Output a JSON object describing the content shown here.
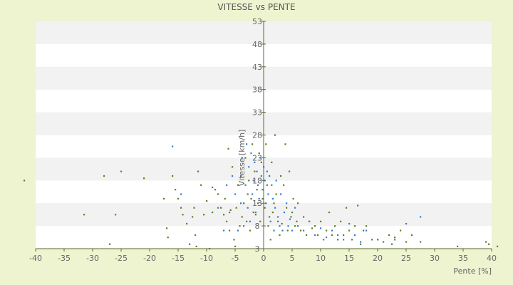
{
  "chart_data": {
    "type": "scatter",
    "title": "VITESSE vs PENTE",
    "xlabel": "Pente [%]",
    "ylabel": "Vitesse [km/h]",
    "xlim": [
      -40,
      40
    ],
    "ylim": [
      3,
      53
    ],
    "x_ticks": [
      "-40",
      "-35",
      "-30",
      "-25",
      "-20",
      "-15",
      "-10",
      "-5",
      "0",
      "5",
      "10",
      "15",
      "20",
      "25",
      "30",
      "35",
      "40"
    ],
    "y_ticks": [
      "3",
      "8",
      "13",
      "18",
      "23",
      "28",
      "33",
      "38",
      "43",
      "48",
      "53"
    ],
    "grid": "horizontal bands",
    "colors": {
      "background": "#eef3d0",
      "band_light": "#ffffff",
      "band_dark": "#f2f2f2",
      "axis": "#556b2f",
      "series_olive": "#6b7a1e",
      "series_blue": "#2f7fd6"
    },
    "series": [
      {
        "color_key": "series_olive",
        "points": [
          [
            -42,
            18
          ],
          [
            -31.5,
            10.5
          ],
          [
            -28,
            19
          ],
          [
            -27,
            4
          ],
          [
            -26,
            10.5
          ],
          [
            -21,
            18.5
          ],
          [
            -17.5,
            14
          ],
          [
            -17,
            7.5
          ],
          [
            -16.8,
            5.5
          ],
          [
            -16,
            19
          ],
          [
            -15.5,
            16
          ],
          [
            -15,
            14
          ],
          [
            -14.5,
            12
          ],
          [
            -14.2,
            10.5
          ],
          [
            -13.5,
            8.5
          ],
          [
            -13,
            4
          ],
          [
            -12.5,
            10
          ],
          [
            -12.2,
            12
          ],
          [
            -12,
            6
          ],
          [
            -11.8,
            3.5
          ],
          [
            -11.5,
            20
          ],
          [
            -11,
            17
          ],
          [
            -10.5,
            10.5
          ],
          [
            -10,
            13.5
          ],
          [
            -9.5,
            3
          ],
          [
            -9,
            11
          ],
          [
            -8.5,
            16
          ],
          [
            -8,
            15
          ],
          [
            -7.5,
            12
          ],
          [
            -7,
            10.5
          ],
          [
            -6.8,
            14
          ],
          [
            -6.5,
            9
          ],
          [
            -6.2,
            25
          ],
          [
            -6,
            7
          ],
          [
            -5.8,
            11.5
          ],
          [
            -5.5,
            21
          ],
          [
            -5.2,
            5
          ],
          [
            -5,
            3.5
          ],
          [
            -4.8,
            12
          ],
          [
            -4.5,
            17
          ],
          [
            -4.2,
            8
          ],
          [
            -4,
            19
          ],
          [
            -3.8,
            10
          ],
          [
            -3.5,
            13
          ],
          [
            -3.2,
            23
          ],
          [
            -3,
            9
          ],
          [
            -2.8,
            15
          ],
          [
            -2.6,
            18
          ],
          [
            -2.4,
            7
          ],
          [
            -2.2,
            14
          ],
          [
            -2,
            26
          ],
          [
            -1.8,
            11
          ],
          [
            -1.6,
            20
          ],
          [
            -1.4,
            10.5
          ],
          [
            -1.2,
            16
          ],
          [
            -1,
            13
          ],
          [
            -0.8,
            24
          ],
          [
            -0.6,
            9
          ],
          [
            -0.4,
            22
          ],
          [
            -0.2,
            14
          ],
          [
            0.2,
            12
          ],
          [
            0.4,
            26
          ],
          [
            0.6,
            17
          ],
          [
            0.8,
            8
          ],
          [
            1,
            10
          ],
          [
            1.2,
            5
          ],
          [
            1.4,
            22
          ],
          [
            1.6,
            11
          ],
          [
            1.8,
            13
          ],
          [
            2,
            28
          ],
          [
            2.2,
            15
          ],
          [
            2.5,
            9
          ],
          [
            2.8,
            6
          ],
          [
            3,
            19
          ],
          [
            3.2,
            8.5
          ],
          [
            3.5,
            17
          ],
          [
            3.8,
            26
          ],
          [
            4,
            12
          ],
          [
            4.2,
            7
          ],
          [
            4.5,
            20
          ],
          [
            4.8,
            10
          ],
          [
            5,
            11
          ],
          [
            5.2,
            14
          ],
          [
            5.5,
            8
          ],
          [
            5.8,
            9
          ],
          [
            6,
            13
          ],
          [
            6.5,
            7
          ],
          [
            7,
            10
          ],
          [
            7.5,
            6
          ],
          [
            8,
            9
          ],
          [
            8.5,
            7.5
          ],
          [
            9,
            8
          ],
          [
            9.5,
            6
          ],
          [
            10,
            9
          ],
          [
            10.5,
            5
          ],
          [
            11,
            7
          ],
          [
            11.5,
            11
          ],
          [
            12,
            6
          ],
          [
            12.5,
            8
          ],
          [
            13,
            5
          ],
          [
            13.5,
            9
          ],
          [
            14,
            6
          ],
          [
            14.5,
            12
          ],
          [
            15,
            7
          ],
          [
            15.5,
            5
          ],
          [
            16,
            8
          ],
          [
            16.5,
            12.5
          ],
          [
            17,
            4
          ],
          [
            17.5,
            7
          ],
          [
            18,
            8
          ],
          [
            19,
            5
          ],
          [
            20,
            5
          ],
          [
            21,
            4.5
          ],
          [
            22,
            6
          ],
          [
            22.5,
            4
          ],
          [
            23,
            5.5
          ],
          [
            24,
            7
          ],
          [
            25,
            4.5
          ],
          [
            26,
            6
          ],
          [
            27.5,
            4.5
          ],
          [
            34,
            3.5
          ],
          [
            39,
            4.5
          ],
          [
            39.5,
            4
          ],
          [
            41,
            3.5
          ]
        ]
      },
      {
        "color_key": "series_blue",
        "points": [
          [
            -25,
            20
          ],
          [
            -16,
            25.5
          ],
          [
            -14.5,
            15
          ],
          [
            -9,
            16.5
          ],
          [
            -8,
            12
          ],
          [
            -7,
            7
          ],
          [
            -6.5,
            17
          ],
          [
            -6,
            11
          ],
          [
            -5.5,
            19
          ],
          [
            -5,
            15
          ],
          [
            -4.5,
            7
          ],
          [
            -4,
            13
          ],
          [
            -3.8,
            23
          ],
          [
            -3.5,
            8
          ],
          [
            -3.2,
            17
          ],
          [
            -3,
            26
          ],
          [
            -2.8,
            12
          ],
          [
            -2.6,
            21
          ],
          [
            -2.4,
            9
          ],
          [
            -2.2,
            24
          ],
          [
            -2,
            15
          ],
          [
            -1.8,
            18
          ],
          [
            -1.6,
            22
          ],
          [
            -1.4,
            11
          ],
          [
            -1.2,
            20
          ],
          [
            -1,
            17
          ],
          [
            -0.8,
            14
          ],
          [
            -0.6,
            23
          ],
          [
            -0.4,
            19
          ],
          [
            -0.2,
            16
          ],
          [
            0,
            21
          ],
          [
            0.2,
            18
          ],
          [
            0.4,
            13
          ],
          [
            0.6,
            20
          ],
          [
            0.8,
            15
          ],
          [
            1,
            19
          ],
          [
            1.2,
            9
          ],
          [
            1.4,
            17
          ],
          [
            1.6,
            14
          ],
          [
            1.8,
            7
          ],
          [
            2,
            12
          ],
          [
            2.2,
            18
          ],
          [
            2.5,
            10
          ],
          [
            2.8,
            8
          ],
          [
            3,
            15
          ],
          [
            3.3,
            7
          ],
          [
            3.6,
            11
          ],
          [
            4,
            13
          ],
          [
            4.3,
            8
          ],
          [
            4.6,
            9.5
          ],
          [
            5,
            7
          ],
          [
            5.5,
            12
          ],
          [
            6,
            8
          ],
          [
            7,
            7
          ],
          [
            8,
            9
          ],
          [
            9,
            6
          ],
          [
            10,
            7.5
          ],
          [
            11,
            5.5
          ],
          [
            12,
            7
          ],
          [
            13,
            6
          ],
          [
            14,
            5
          ],
          [
            15,
            8.5
          ],
          [
            16,
            6
          ],
          [
            17,
            4.5
          ],
          [
            18,
            7
          ],
          [
            20,
            5
          ],
          [
            23,
            5
          ],
          [
            25,
            8.5
          ],
          [
            27.5,
            10
          ]
        ]
      }
    ]
  }
}
